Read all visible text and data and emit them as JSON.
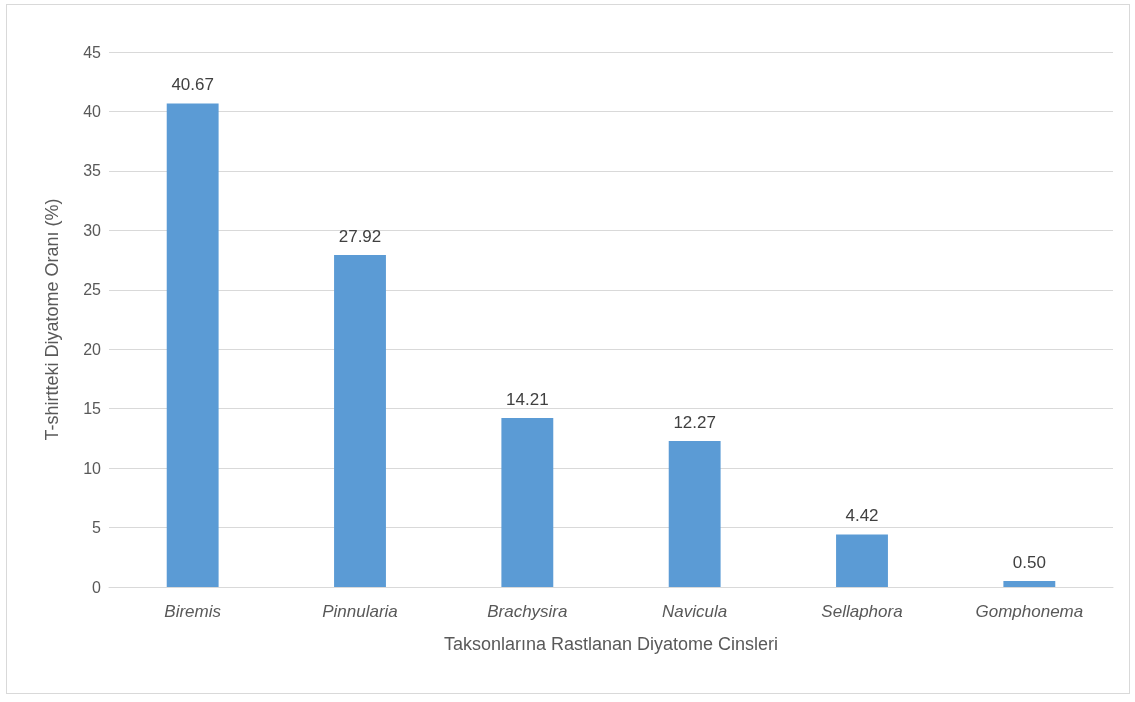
{
  "chart_data": {
    "type": "bar",
    "xlabel": "Taksonlarına Rastlanan Diyatome Cinsleri",
    "ylabel": "T-shirtteki Diyatome Oranı (%)",
    "categories": [
      "Biremis",
      "Pinnularia",
      "Brachysira",
      "Navicula",
      "Sellaphora",
      "Gomphonema"
    ],
    "values": [
      40.67,
      27.92,
      14.21,
      12.27,
      4.42,
      0.5
    ],
    "value_labels": [
      "40.67",
      "27.92",
      "14.21",
      "12.27",
      "4.42",
      "0.50"
    ],
    "color": "#5b9bd5",
    "ylim": [
      0,
      45
    ],
    "yticks": [
      0,
      5,
      10,
      15,
      20,
      25,
      30,
      35,
      40,
      45
    ],
    "grid": "y"
  }
}
